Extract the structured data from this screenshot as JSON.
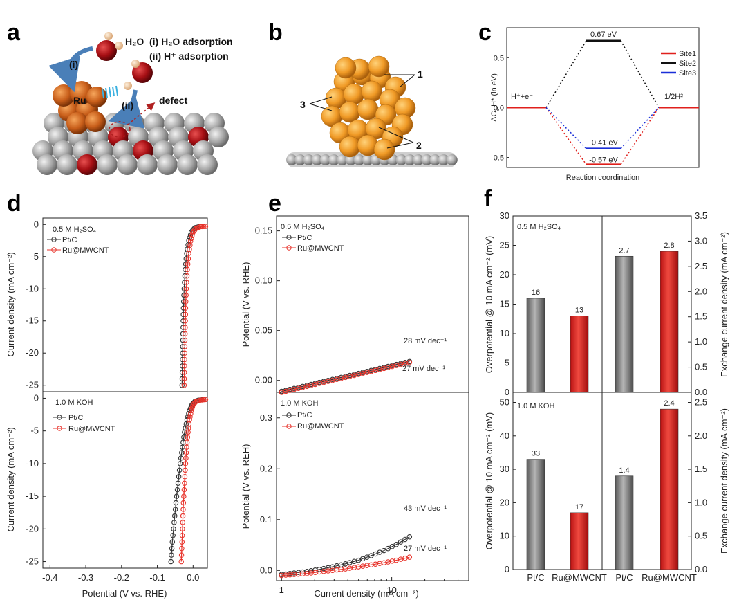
{
  "panels": {
    "a": "a",
    "b": "b",
    "c": "c",
    "d": "d",
    "e": "e",
    "f": "f"
  },
  "panel_a": {
    "h2o_label": "H₂O",
    "step1": "(i) H₂O adsorption",
    "step2": "(ii) H⁺ adsorption",
    "arrow1": "(i)",
    "arrow2": "(ii)",
    "ru": "Ru",
    "defect": "defect"
  },
  "panel_b": {
    "site1": "1",
    "site2": "2",
    "site3": "3"
  },
  "colors": {
    "site1": "#e0201c",
    "site2": "#111111",
    "site3": "#1a2fd8",
    "ptc": "#333333",
    "ru": "#e8342c",
    "electrolyte_label": "#7a1fd0",
    "bar_grey": "#8a8a8a",
    "bar_red": "#d92626"
  },
  "chart_data": [
    {
      "id": "c",
      "type": "line",
      "ylabel": "ΔG_H* (in eV)",
      "xlabel": "Reaction coordination",
      "ylim": [
        -0.6,
        0.8
      ],
      "yticks": [
        "0.5",
        "0.0",
        "-0.5"
      ],
      "start_label": "H⁺+e⁻",
      "end_label": "1/2H²",
      "legend": [
        "Site1",
        "Site2",
        "Site3"
      ],
      "series": [
        {
          "name": "Site1",
          "values": [
            0,
            -0.57,
            0
          ],
          "label": "-0.57 eV"
        },
        {
          "name": "Site2",
          "values": [
            0,
            0.67,
            0
          ],
          "label": "0.67 eV"
        },
        {
          "name": "Site3",
          "values": [
            0,
            -0.41,
            0
          ],
          "label": "-0.41 eV"
        }
      ]
    },
    {
      "id": "d",
      "type": "scatter",
      "xlabel": "Potential (V vs. RHE)",
      "ylabel": "Current density (mA cm⁻²)",
      "xlim": [
        -0.42,
        0.04
      ],
      "xticks": [
        "-0.4",
        "-0.3",
        "-0.2",
        "-0.1",
        "0.0"
      ],
      "top": {
        "electrolyte": "0.5 M H₂SO₄",
        "ylim": [
          -26,
          1
        ],
        "yticks": [
          "0",
          "-5",
          "-10",
          "-15",
          "-20",
          "-25"
        ],
        "series": [
          {
            "name": "Pt/C",
            "x": [
              -0.031,
              -0.03,
              -0.029,
              -0.028,
              -0.027,
              -0.025,
              -0.022,
              -0.018,
              -0.012,
              -0.005,
              0.005,
              0.02
            ],
            "y": [
              -25,
              -22,
              -19,
              -16,
              -13,
              -10,
              -7,
              -4.5,
              -2.5,
              -1.2,
              -0.5,
              -0.3
            ]
          },
          {
            "name": "Ru@MWCNT",
            "x": [
              -0.025,
              -0.024,
              -0.023,
              -0.022,
              -0.021,
              -0.019,
              -0.016,
              -0.012,
              -0.007,
              -0.001,
              0.008,
              0.02,
              0.035
            ],
            "y": [
              -25,
              -22,
              -19,
              -16,
              -13,
              -10,
              -7,
              -4.5,
              -2.6,
              -1.3,
              -0.6,
              -0.35,
              -0.3
            ]
          }
        ]
      },
      "bottom": {
        "electrolyte": "1.0 M KOH",
        "ylim": [
          -26,
          1
        ],
        "yticks": [
          "0",
          "-5",
          "-10",
          "-15",
          "-20",
          "-25"
        ],
        "series": [
          {
            "name": "Pt/C",
            "x": [
              -0.062,
              -0.058,
              -0.053,
              -0.048,
              -0.042,
              -0.036,
              -0.03,
              -0.024,
              -0.017,
              -0.01,
              -0.003,
              0.005,
              0.015,
              0.03
            ],
            "y": [
              -25,
              -22,
              -19,
              -16,
              -13,
              -10,
              -7.5,
              -5.2,
              -3.3,
              -1.9,
              -1.0,
              -0.5,
              -0.3,
              -0.2
            ]
          },
          {
            "name": "Ru@MWCNT",
            "x": [
              -0.033,
              -0.031,
              -0.029,
              -0.027,
              -0.024,
              -0.021,
              -0.018,
              -0.014,
              -0.01,
              -0.005,
              0.0,
              0.008,
              0.02,
              0.035
            ],
            "y": [
              -25,
              -22,
              -19,
              -16,
              -13,
              -10,
              -7.5,
              -5.2,
              -3.3,
              -1.9,
              -1.0,
              -0.5,
              -0.3,
              -0.2
            ]
          }
        ]
      }
    },
    {
      "id": "e",
      "type": "scatter",
      "xscale": "log",
      "xlabel": "Current density (mA cm⁻²)",
      "xlim": [
        0.9,
        50
      ],
      "xticks": [
        "1",
        "10"
      ],
      "top": {
        "electrolyte": "0.5 M H₂SO₄",
        "ylabel": "Potential (V vs. RHE)",
        "ylim": [
          -0.012,
          0.165
        ],
        "yticks": [
          "0.15",
          "0.10",
          "0.05",
          "0.00"
        ],
        "series": [
          {
            "name": "Pt/C",
            "slope_label": "28 mV dec⁻¹",
            "x": [
              1,
              1.3,
              1.7,
              2.2,
              2.9,
              3.8,
              5,
              6.5,
              8.5,
              11,
              14.5
            ],
            "y": [
              -0.011,
              -0.008,
              -0.005,
              -0.002,
              0.001,
              0.004,
              0.007,
              0.01,
              0.013,
              0.016,
              0.019
            ]
          },
          {
            "name": "Ru@MWCNT",
            "slope_label": "27 mV dec⁻¹",
            "x": [
              1,
              1.3,
              1.7,
              2.2,
              2.9,
              3.8,
              5,
              6.5,
              8.5,
              11,
              14.5
            ],
            "y": [
              -0.012,
              -0.009,
              -0.006,
              -0.003,
              0.0,
              0.003,
              0.006,
              0.009,
              0.012,
              0.015,
              0.018
            ]
          }
        ]
      },
      "bottom": {
        "electrolyte": "1.0 M KOH",
        "ylabel": "Potential (V vs. REH)",
        "ylim": [
          -0.02,
          0.35
        ],
        "yticks": [
          "0.3",
          "0.2",
          "0.1",
          "0.0"
        ],
        "series": [
          {
            "name": "Pt/C",
            "slope_label": "43 mV dec⁻¹",
            "x": [
              1,
              1.3,
              1.7,
              2.2,
              2.9,
              3.8,
              5,
              6.5,
              8.5,
              11,
              14.5
            ],
            "y": [
              -0.008,
              -0.005,
              -0.002,
              0.002,
              0.007,
              0.013,
              0.02,
              0.029,
              0.039,
              0.051,
              0.066
            ]
          },
          {
            "name": "Ru@MWCNT",
            "slope_label": "27 mV dec⁻¹",
            "x": [
              1,
              1.3,
              1.7,
              2.2,
              2.9,
              3.8,
              5,
              6.5,
              8.5,
              11,
              14.5
            ],
            "y": [
              -0.01,
              -0.008,
              -0.006,
              -0.003,
              0.0,
              0.003,
              0.007,
              0.011,
              0.015,
              0.02,
              0.026
            ]
          }
        ]
      }
    },
    {
      "id": "f",
      "type": "bar",
      "categories": [
        "Pt/C",
        "Ru@MWCNT",
        "Pt/C",
        "Ru@MWCNT"
      ],
      "top": {
        "electrolyte": "0.5 M H₂SO₄",
        "ylabel_left": "Overpotential @ 10 mA cm⁻² (mV)",
        "ylabel_right": "Exchange current density (mA cm⁻²)",
        "ylim_left": [
          0,
          30
        ],
        "ylim_right": [
          0,
          3.5
        ],
        "yticks_left": [
          "0",
          "5",
          "10",
          "15",
          "20",
          "25",
          "30"
        ],
        "yticks_right": [
          "0.0",
          "0.5",
          "1.0",
          "1.5",
          "2.0",
          "2.5",
          "3.0",
          "3.5"
        ],
        "overpotential": [
          16,
          13
        ],
        "overpotential_labels": [
          "16",
          "13"
        ],
        "exchange": [
          2.7,
          2.8
        ],
        "exchange_labels": [
          "2.7",
          "2.8"
        ]
      },
      "bottom": {
        "electrolyte": "1.0 M KOH",
        "ylabel_left": "Overpotential @ 10 mA cm⁻² (mV)",
        "ylabel_right": "Exchange current density (mA cm⁻²)",
        "ylim_left": [
          0,
          53
        ],
        "ylim_right": [
          0,
          2.65
        ],
        "yticks_left": [
          "0",
          "10",
          "20",
          "30",
          "40",
          "50"
        ],
        "yticks_right": [
          "0.0",
          "0.5",
          "1.0",
          "1.5",
          "2.0",
          "2.5"
        ],
        "overpotential": [
          33,
          17
        ],
        "overpotential_labels": [
          "33",
          "17"
        ],
        "exchange": [
          1.4,
          2.4
        ],
        "exchange_labels": [
          "1.4",
          "2.4"
        ]
      }
    }
  ]
}
